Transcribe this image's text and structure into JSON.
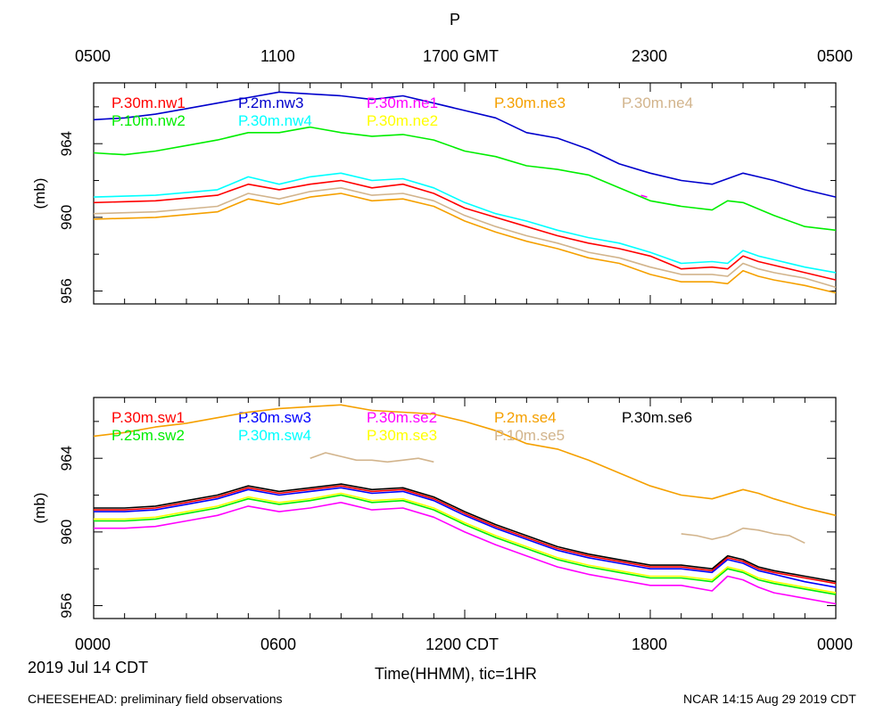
{
  "title": "P",
  "top_axis": {
    "ticks": [
      "0500",
      "1100",
      "1700 GMT",
      "2300",
      "0500"
    ]
  },
  "bottom_axis": {
    "ticks": [
      "0000",
      "0600",
      "1200 CDT",
      "1800",
      "0000"
    ],
    "label": "Time(HHMM), tic=1HR",
    "date": "2019 Jul 14 CDT"
  },
  "footer": {
    "left": "CHEESEHEAD: preliminary field observations",
    "right": "NCAR 14:15 Aug 29 2019 CDT"
  },
  "chart_data": [
    {
      "type": "line",
      "panel": "top",
      "ylabel": "(mb)",
      "yticks": [
        956,
        960,
        964
      ],
      "ylim": [
        955.3,
        967.3
      ],
      "xlim": [
        0,
        24
      ],
      "x_unit": "hours CDT",
      "series": [
        {
          "name": "P.30m.nw1",
          "color": "#ff0000",
          "x": [
            0,
            2,
            4,
            5,
            6,
            7,
            8,
            9,
            10,
            11,
            12,
            13,
            14,
            15,
            16,
            17,
            18,
            19,
            20,
            20.5,
            21,
            21.5,
            22,
            23,
            24
          ],
          "y": [
            960.8,
            960.9,
            961.2,
            961.8,
            961.5,
            961.8,
            962.0,
            961.6,
            961.8,
            961.3,
            960.5,
            960.0,
            959.5,
            959.0,
            958.6,
            958.3,
            957.9,
            957.2,
            957.3,
            957.2,
            957.9,
            957.6,
            957.4,
            957.0,
            956.6
          ]
        },
        {
          "name": "P.2m.nw3",
          "color": "#0000cc",
          "x": [
            0,
            1,
            2,
            3,
            4,
            5,
            6,
            7,
            8,
            9,
            10,
            11,
            12,
            13,
            14,
            15,
            16,
            17,
            18,
            19,
            20,
            21,
            21.5,
            22,
            23,
            24
          ],
          "y": [
            965.3,
            965.4,
            965.6,
            965.9,
            966.2,
            966.5,
            966.8,
            966.7,
            966.6,
            966.4,
            966.6,
            966.2,
            965.8,
            965.4,
            964.6,
            964.3,
            963.7,
            962.9,
            962.4,
            962.0,
            961.8,
            962.4,
            962.2,
            962.0,
            961.5,
            961.1
          ]
        },
        {
          "name": "P.30m.ne1",
          "color": "#ff00ff",
          "x": [
            17.7,
            17.9
          ],
          "y": [
            961.2,
            961.1
          ]
        },
        {
          "name": "P.30m.ne3",
          "color": "#f5a000",
          "x": [
            0,
            2,
            4,
            5,
            6,
            7,
            8,
            9,
            10,
            11,
            12,
            13,
            14,
            15,
            16,
            17,
            18,
            19,
            20,
            20.5,
            21,
            21.5,
            22,
            23,
            24
          ],
          "y": [
            959.9,
            960.0,
            960.3,
            961.0,
            960.7,
            961.1,
            961.3,
            960.9,
            961.0,
            960.6,
            959.8,
            959.2,
            958.7,
            958.3,
            957.8,
            957.5,
            956.9,
            956.5,
            956.5,
            956.4,
            957.1,
            956.8,
            956.6,
            956.3,
            955.9
          ]
        },
        {
          "name": "P.30m.ne4",
          "color": "#d2b48c",
          "x": [
            0,
            2,
            4,
            5,
            6,
            7,
            8,
            9,
            10,
            11,
            12,
            13,
            14,
            15,
            16,
            17,
            18,
            19,
            20,
            20.5,
            21,
            21.5,
            22,
            23,
            24
          ],
          "y": [
            960.2,
            960.3,
            960.6,
            961.3,
            961.0,
            961.4,
            961.6,
            961.2,
            961.3,
            960.9,
            960.1,
            959.5,
            959.0,
            958.6,
            958.1,
            957.8,
            957.3,
            956.9,
            956.9,
            956.8,
            957.5,
            957.2,
            957.0,
            956.7,
            956.2
          ]
        },
        {
          "name": "P.10m.nw2",
          "color": "#00ee00",
          "x": [
            0,
            1,
            2,
            3,
            4,
            5,
            6,
            7,
            8,
            9,
            10,
            11,
            12,
            13,
            14,
            15,
            16,
            17,
            18,
            19,
            20,
            20.5,
            21,
            22,
            23,
            24
          ],
          "y": [
            963.5,
            963.4,
            963.6,
            963.9,
            964.2,
            964.6,
            964.6,
            964.9,
            964.6,
            964.4,
            964.5,
            964.2,
            963.6,
            963.3,
            962.8,
            962.6,
            962.3,
            961.6,
            960.9,
            960.6,
            960.4,
            960.9,
            960.8,
            960.1,
            959.5,
            959.3
          ]
        },
        {
          "name": "P.30m.nw4",
          "color": "#00ffff",
          "x": [
            0,
            2,
            4,
            5,
            6,
            7,
            8,
            9,
            10,
            11,
            12,
            13,
            14,
            15,
            16,
            17,
            18,
            19,
            20,
            20.5,
            21,
            21.5,
            22,
            23,
            24
          ],
          "y": [
            961.1,
            961.2,
            961.5,
            962.2,
            961.8,
            962.2,
            962.4,
            962.0,
            962.1,
            961.6,
            960.8,
            960.2,
            959.8,
            959.3,
            958.9,
            958.6,
            958.1,
            957.5,
            957.6,
            957.5,
            958.2,
            957.9,
            957.7,
            957.3,
            957.0
          ]
        },
        {
          "name": "P.30m.ne2",
          "color": "#ffff00",
          "x": [],
          "y": []
        }
      ]
    },
    {
      "type": "line",
      "panel": "bottom",
      "ylabel": "(mb)",
      "yticks": [
        956,
        960,
        964
      ],
      "ylim": [
        955.3,
        967.3
      ],
      "xlim": [
        0,
        24
      ],
      "x_unit": "hours CDT",
      "series": [
        {
          "name": "P.30m.sw1",
          "color": "#ff0000",
          "x": [
            0,
            1,
            2,
            3,
            4,
            5,
            6,
            7,
            8,
            9,
            10,
            11,
            12,
            13,
            14,
            15,
            16,
            17,
            18,
            19,
            20,
            20.5,
            21,
            21.5,
            22,
            23,
            24
          ],
          "y": [
            961.2,
            961.2,
            961.3,
            961.6,
            961.9,
            962.4,
            962.1,
            962.3,
            962.5,
            962.2,
            962.3,
            961.8,
            961.0,
            960.3,
            959.7,
            959.1,
            958.7,
            958.4,
            958.1,
            958.1,
            957.9,
            958.6,
            958.4,
            958.0,
            957.8,
            957.5,
            957.2
          ]
        },
        {
          "name": "P.30m.sw3",
          "color": "#0000ff",
          "x": [
            0,
            1,
            2,
            3,
            4,
            5,
            6,
            7,
            8,
            9,
            10,
            11,
            12,
            13,
            14,
            15,
            16,
            17,
            18,
            19,
            20,
            20.5,
            21,
            21.5,
            22,
            23,
            24
          ],
          "y": [
            961.1,
            961.1,
            961.2,
            961.5,
            961.8,
            962.3,
            962.0,
            962.2,
            962.4,
            962.1,
            962.2,
            961.7,
            960.9,
            960.2,
            959.6,
            959.0,
            958.6,
            958.3,
            958.0,
            958.0,
            957.8,
            958.5,
            958.3,
            957.9,
            957.7,
            957.3,
            957.0
          ]
        },
        {
          "name": "P.30m.se2",
          "color": "#ff00ff",
          "x": [
            0,
            1,
            2,
            3,
            4,
            5,
            6,
            7,
            8,
            9,
            10,
            11,
            12,
            13,
            14,
            15,
            16,
            17,
            18,
            19,
            20,
            20.5,
            21,
            21.5,
            22,
            23,
            24
          ],
          "y": [
            960.2,
            960.2,
            960.3,
            960.6,
            960.9,
            961.4,
            961.1,
            961.3,
            961.6,
            961.2,
            961.3,
            960.8,
            960.0,
            959.3,
            958.7,
            958.1,
            957.7,
            957.4,
            957.1,
            957.1,
            956.8,
            957.6,
            957.4,
            957.0,
            956.7,
            956.4,
            956.1
          ]
        },
        {
          "name": "P.2m.se4",
          "color": "#f5a000",
          "x": [
            0,
            1,
            2,
            3,
            4,
            5,
            6,
            7,
            8,
            9,
            10,
            11,
            12,
            13,
            14,
            15,
            16,
            17,
            18,
            19,
            20,
            21,
            21.5,
            22,
            23,
            24
          ],
          "y": [
            965.2,
            965.4,
            965.7,
            965.9,
            966.2,
            966.5,
            966.7,
            966.8,
            966.9,
            966.6,
            966.5,
            966.4,
            966.0,
            965.5,
            964.8,
            964.5,
            963.9,
            963.2,
            962.5,
            962.0,
            961.8,
            962.3,
            962.1,
            961.8,
            961.3,
            960.9
          ]
        },
        {
          "name": "P.30m.se6",
          "color": "#000000",
          "x": [
            0,
            1,
            2,
            3,
            4,
            5,
            6,
            7,
            8,
            9,
            10,
            11,
            12,
            13,
            14,
            15,
            16,
            17,
            18,
            19,
            20,
            20.5,
            21,
            21.5,
            22,
            23,
            24
          ],
          "y": [
            961.3,
            961.3,
            961.4,
            961.7,
            962.0,
            962.5,
            962.2,
            962.4,
            962.6,
            962.3,
            962.4,
            961.9,
            961.1,
            960.4,
            959.8,
            959.2,
            958.8,
            958.5,
            958.2,
            958.2,
            958.0,
            958.7,
            958.5,
            958.1,
            957.9,
            957.6,
            957.3
          ]
        },
        {
          "name": "P.25m.sw2",
          "color": "#00ee00",
          "x": [
            0,
            1,
            2,
            3,
            4,
            5,
            6,
            7,
            8,
            9,
            10,
            11,
            12,
            13,
            14,
            15,
            16,
            17,
            18,
            19,
            20,
            20.5,
            21,
            21.5,
            22,
            23,
            24
          ],
          "y": [
            960.6,
            960.6,
            960.7,
            961.0,
            961.3,
            961.8,
            961.5,
            961.7,
            962.0,
            961.6,
            961.7,
            961.2,
            960.4,
            959.7,
            959.1,
            958.5,
            958.1,
            957.8,
            957.5,
            957.5,
            957.3,
            958.0,
            957.8,
            957.4,
            957.2,
            956.9,
            956.6
          ]
        },
        {
          "name": "P.30m.sw4",
          "color": "#00ffff",
          "x": [],
          "y": []
        },
        {
          "name": "P.30m.se3",
          "color": "#ffff00",
          "x": [
            0,
            1,
            2,
            3,
            4,
            5,
            6,
            7,
            8,
            9,
            10,
            11,
            12,
            13,
            14,
            15,
            16,
            17,
            18,
            19,
            20,
            20.5,
            21,
            21.5,
            22,
            23,
            24
          ],
          "y": [
            960.7,
            960.7,
            960.8,
            961.1,
            961.4,
            961.9,
            961.6,
            961.8,
            962.1,
            961.7,
            961.8,
            961.3,
            960.5,
            959.8,
            959.2,
            958.6,
            958.2,
            957.9,
            957.6,
            957.6,
            957.4,
            958.1,
            957.9,
            957.5,
            957.3,
            957.0,
            956.7
          ]
        },
        {
          "name": "P.10m.se5",
          "color": "#d2b48c",
          "x": [
            7,
            7.5,
            8,
            8.5,
            9,
            9.5,
            10,
            10.5,
            11,
            19,
            19.5,
            20,
            20.5,
            21,
            21.5,
            22,
            22.5,
            23
          ],
          "y": [
            964.0,
            964.3,
            964.1,
            963.9,
            963.9,
            963.8,
            963.9,
            964.0,
            963.8,
            959.9,
            959.8,
            959.6,
            959.8,
            960.2,
            960.1,
            959.9,
            959.8,
            959.4
          ]
        }
      ]
    }
  ]
}
